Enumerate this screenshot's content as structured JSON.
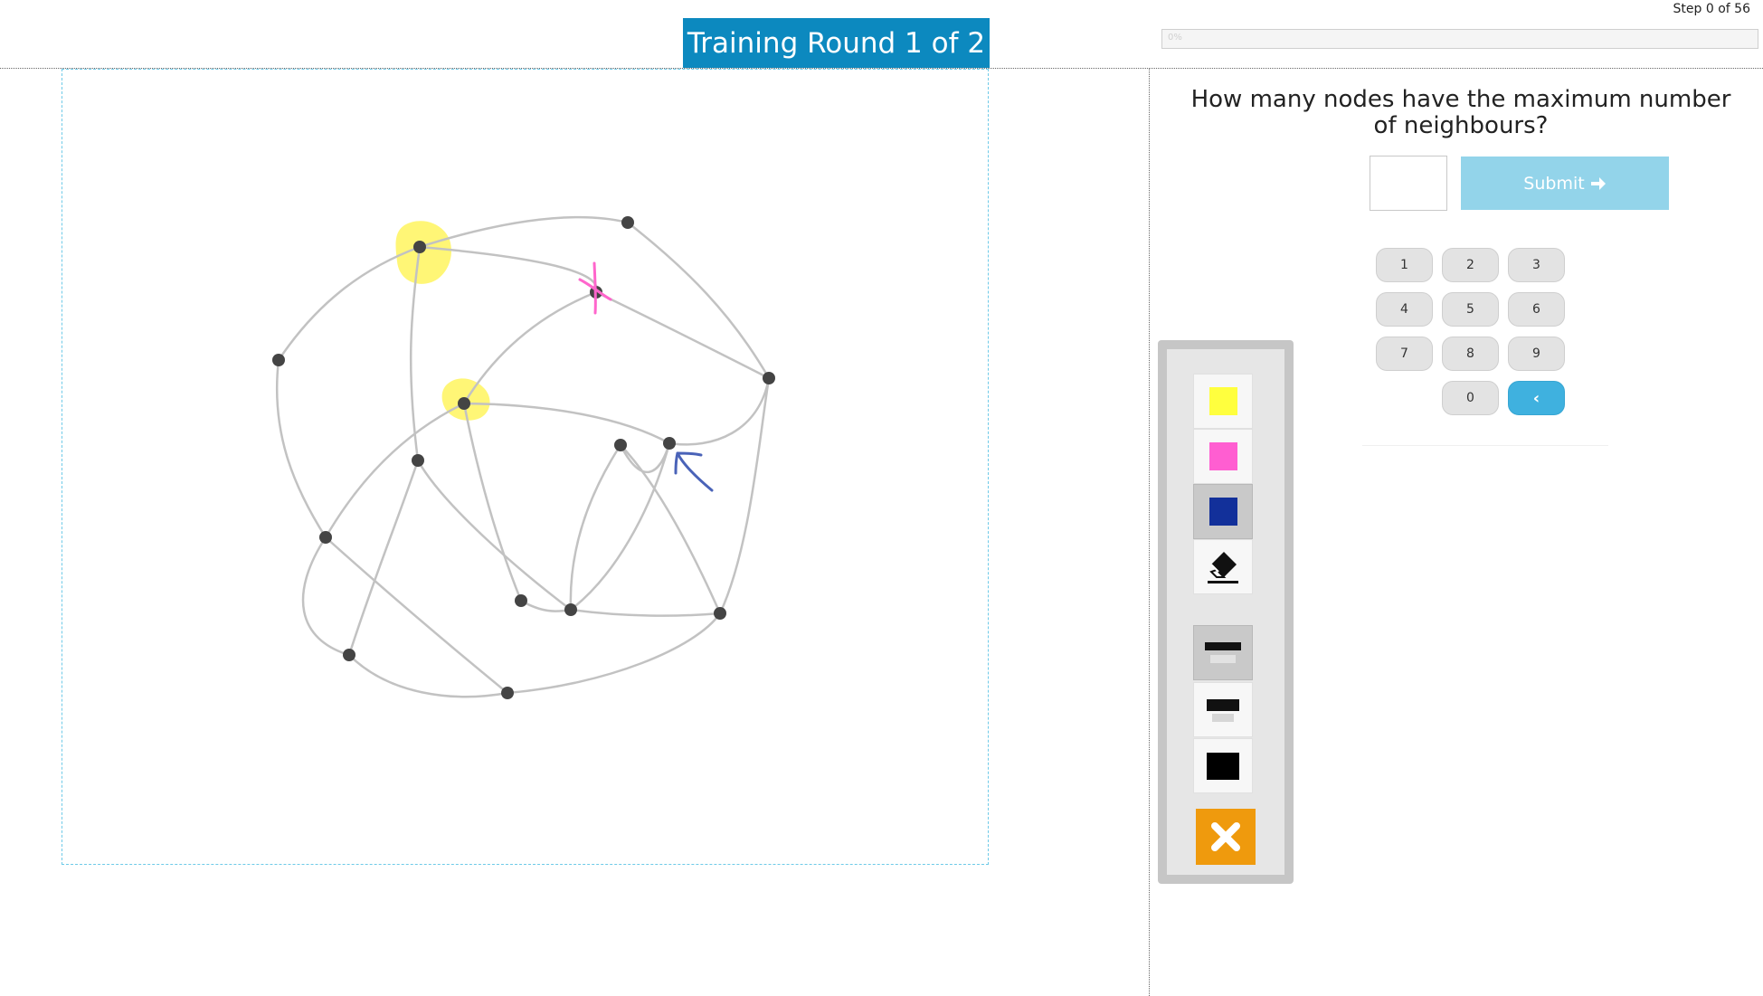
{
  "header": {
    "round_title": "Training Round 1 of 2",
    "step_text": "Step 0 of 56",
    "progress_percent": 0,
    "progress_label": "0%"
  },
  "question": {
    "text": "How many nodes have the maximum number of neighbours?",
    "answer_value": "",
    "submit_label": "Submit",
    "submit_icon": "arrow-right-icon"
  },
  "keypad": {
    "keys": [
      "1",
      "2",
      "3",
      "4",
      "5",
      "6",
      "7",
      "8",
      "9",
      "0"
    ],
    "backspace_icon": "chevron-left-icon",
    "backspace_glyph": "‹"
  },
  "toolbar": {
    "colors": [
      {
        "name": "yellow",
        "hex": "#ffff3e"
      },
      {
        "name": "pink",
        "hex": "#ff5ed1"
      },
      {
        "name": "blue",
        "hex": "#12309a"
      }
    ],
    "selected_color": "blue",
    "eraser_icon": "eraser-icon",
    "pen_sizes": [
      "thin",
      "medium",
      "thick"
    ],
    "selected_pen_size": "thin",
    "close_icon": "close-icon"
  },
  "graph": {
    "edge_color": "#c2c2c2",
    "node_color": "#444444",
    "highlight_color": "#fff55e",
    "annotations": [
      "yellow highlight on two nodes",
      "pink cross on one node",
      "blue arrow near one node"
    ]
  }
}
